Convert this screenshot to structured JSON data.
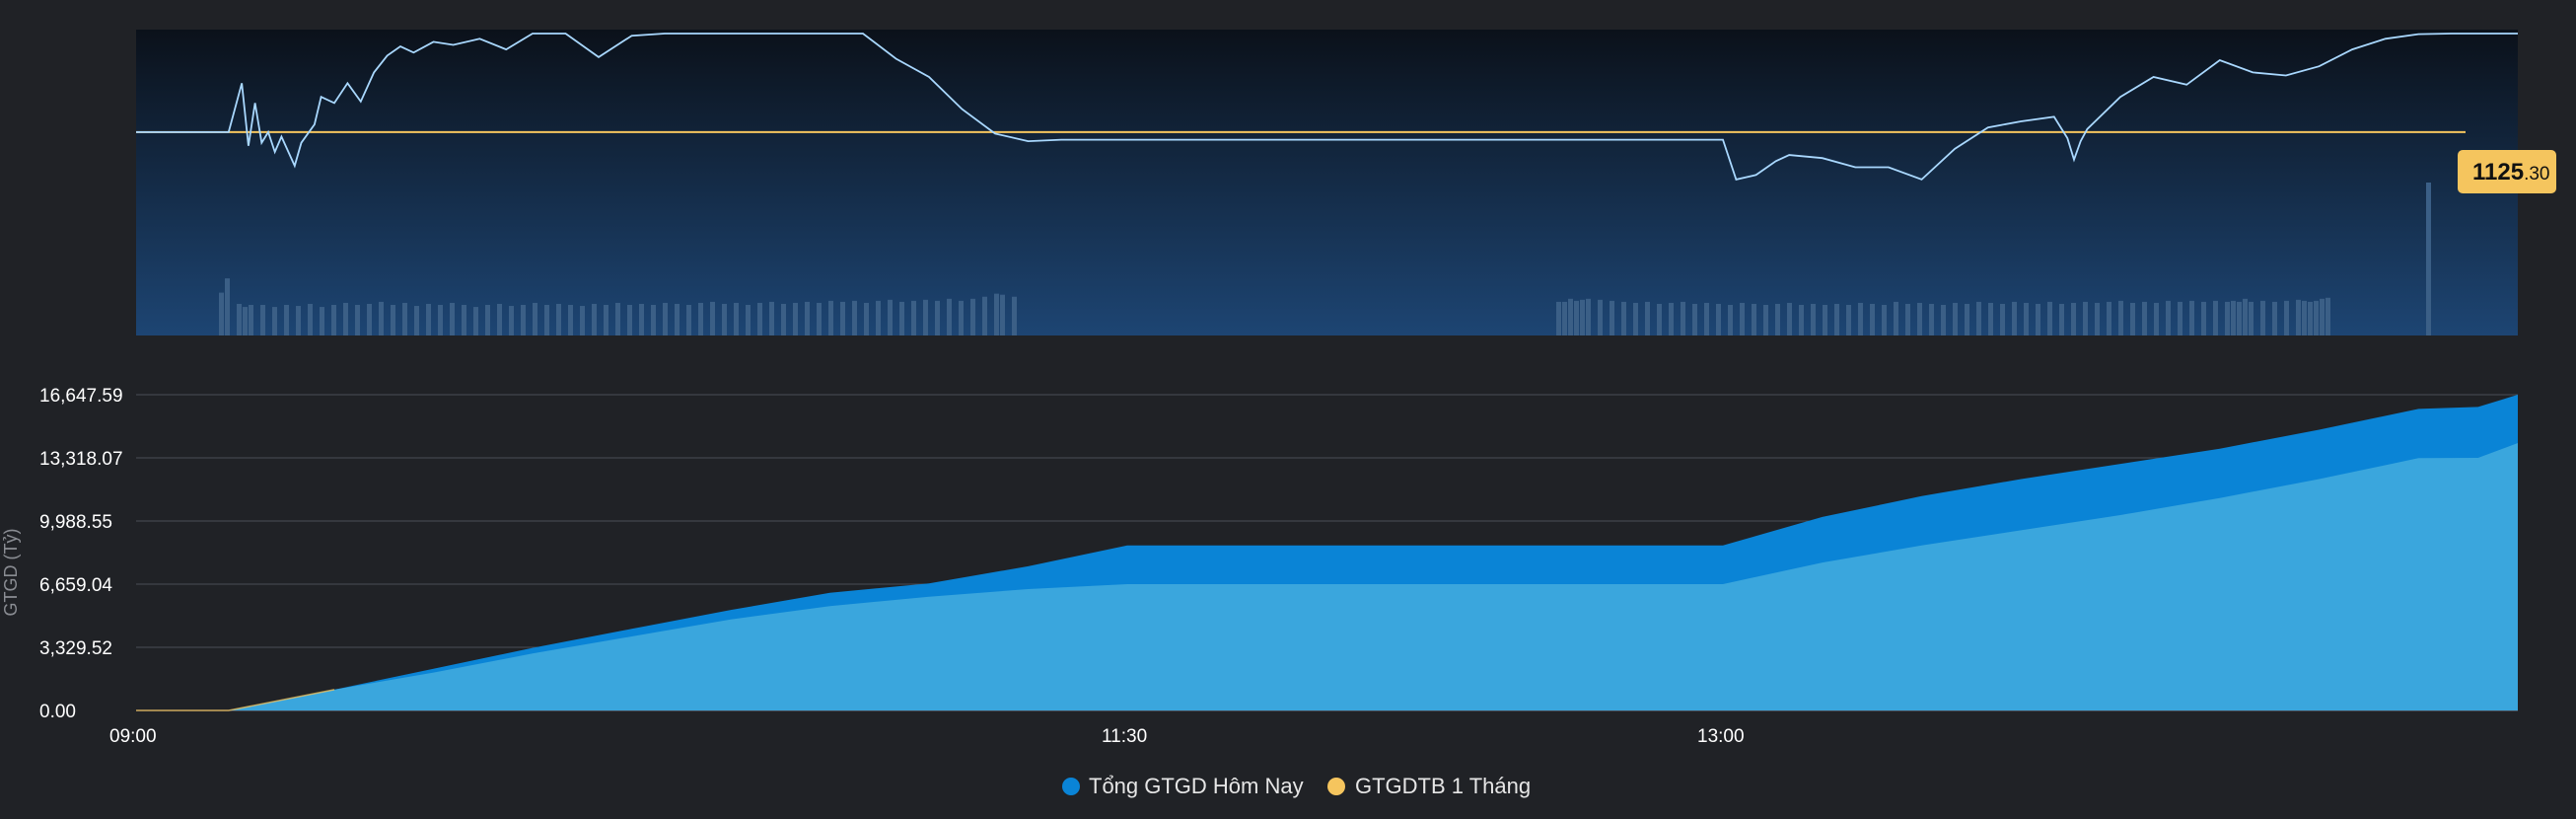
{
  "chart_data": [
    {
      "type": "line",
      "name": "intraday-index",
      "x_unit": "time",
      "x_domain": [
        "09:00",
        "15:00"
      ],
      "reference_value": 1125.3,
      "reference_label_int": "1125",
      "reference_label_dec": ".30",
      "ylim": [
        1112,
        1132
      ],
      "breaks": [
        [
          "11:30",
          "13:00"
        ]
      ],
      "x": [
        "09:00",
        "09:14",
        "09:16",
        "09:17",
        "09:18",
        "09:19",
        "09:20",
        "09:21",
        "09:22",
        "09:24",
        "09:25",
        "09:27",
        "09:28",
        "09:30",
        "09:32",
        "09:34",
        "09:36",
        "09:38",
        "09:40",
        "09:42",
        "09:45",
        "09:48",
        "09:52",
        "09:56",
        "10:00",
        "10:05",
        "10:10",
        "10:15",
        "10:20",
        "10:25",
        "10:30",
        "10:35",
        "10:40",
        "10:45",
        "10:50",
        "10:55",
        "11:00",
        "11:05",
        "11:10",
        "11:15",
        "11:20",
        "11:25",
        "11:30",
        "11:32",
        "12:59",
        "13:00",
        "13:02",
        "13:05",
        "13:08",
        "13:10",
        "13:15",
        "13:20",
        "13:25",
        "13:30",
        "13:35",
        "13:40",
        "13:45",
        "13:50",
        "13:52",
        "13:53",
        "13:54",
        "13:55",
        "14:00",
        "14:05",
        "14:10",
        "14:15",
        "14:20",
        "14:25",
        "14:30",
        "14:35",
        "14:40",
        "14:45",
        "14:50",
        "14:55",
        "15:00"
      ],
      "values": [
        1125.3,
        1125.3,
        1128.5,
        1124.4,
        1127.2,
        1124.6,
        1125.3,
        1124.0,
        1125.0,
        1123.1,
        1124.6,
        1125.8,
        1127.6,
        1127.2,
        1128.5,
        1127.3,
        1129.2,
        1130.3,
        1130.9,
        1130.5,
        1131.2,
        1131.0,
        1131.4,
        1130.7,
        1131.8,
        1132.4,
        1130.2,
        1131.6,
        1132.5,
        1133.2,
        1133.5,
        1133.1,
        1133.6,
        1133.2,
        1132.0,
        1130.1,
        1128.9,
        1126.8,
        1125.2,
        1124.7,
        1124.8,
        1124.8,
        1124.8,
        1124.8,
        1124.8,
        1124.8,
        1122.2,
        1122.5,
        1123.4,
        1123.8,
        1123.6,
        1123.0,
        1123.0,
        1122.2,
        1124.2,
        1125.6,
        1126.0,
        1126.3,
        1124.9,
        1123.5,
        1124.7,
        1125.5,
        1127.6,
        1128.9,
        1128.4,
        1130.0,
        1129.2,
        1129.0,
        1129.6,
        1130.7,
        1131.4,
        1131.7,
        1131.8,
        1131.9,
        1131.9
      ],
      "volume": {
        "ylim": [
          0,
          3000
        ],
        "bars": [
          [
            14,
            420
          ],
          [
            15,
            560
          ],
          [
            17,
            310
          ],
          [
            18,
            280
          ],
          [
            19,
            300
          ],
          [
            21,
            300
          ],
          [
            23,
            280
          ],
          [
            25,
            300
          ],
          [
            27,
            290
          ],
          [
            29,
            310
          ],
          [
            31,
            280
          ],
          [
            33,
            300
          ],
          [
            35,
            320
          ],
          [
            37,
            300
          ],
          [
            39,
            310
          ],
          [
            41,
            330
          ],
          [
            43,
            300
          ],
          [
            45,
            320
          ],
          [
            47,
            290
          ],
          [
            49,
            310
          ],
          [
            51,
            300
          ],
          [
            53,
            320
          ],
          [
            55,
            300
          ],
          [
            57,
            280
          ],
          [
            59,
            300
          ],
          [
            61,
            310
          ],
          [
            63,
            290
          ],
          [
            65,
            300
          ],
          [
            67,
            320
          ],
          [
            69,
            300
          ],
          [
            71,
            310
          ],
          [
            73,
            300
          ],
          [
            75,
            290
          ],
          [
            77,
            310
          ],
          [
            79,
            300
          ],
          [
            81,
            320
          ],
          [
            83,
            300
          ],
          [
            85,
            310
          ],
          [
            87,
            300
          ],
          [
            89,
            320
          ],
          [
            91,
            310
          ],
          [
            93,
            300
          ],
          [
            95,
            320
          ],
          [
            97,
            330
          ],
          [
            99,
            310
          ],
          [
            101,
            320
          ],
          [
            103,
            300
          ],
          [
            105,
            320
          ],
          [
            107,
            330
          ],
          [
            109,
            310
          ],
          [
            111,
            320
          ],
          [
            113,
            330
          ],
          [
            115,
            320
          ],
          [
            117,
            340
          ],
          [
            119,
            330
          ],
          [
            121,
            340
          ],
          [
            123,
            320
          ],
          [
            125,
            340
          ],
          [
            127,
            350
          ],
          [
            129,
            330
          ],
          [
            131,
            340
          ],
          [
            133,
            350
          ],
          [
            135,
            340
          ],
          [
            137,
            360
          ],
          [
            139,
            340
          ],
          [
            141,
            360
          ],
          [
            143,
            380
          ],
          [
            145,
            410
          ],
          [
            146,
            400
          ],
          [
            148,
            380
          ],
          [
            240,
            330
          ],
          [
            241,
            330
          ],
          [
            242,
            360
          ],
          [
            243,
            340
          ],
          [
            244,
            350
          ],
          [
            245,
            360
          ],
          [
            247,
            350
          ],
          [
            249,
            340
          ],
          [
            251,
            330
          ],
          [
            253,
            320
          ],
          [
            255,
            330
          ],
          [
            257,
            310
          ],
          [
            259,
            320
          ],
          [
            261,
            330
          ],
          [
            263,
            310
          ],
          [
            265,
            320
          ],
          [
            267,
            310
          ],
          [
            269,
            300
          ],
          [
            271,
            320
          ],
          [
            273,
            310
          ],
          [
            275,
            300
          ],
          [
            277,
            310
          ],
          [
            279,
            320
          ],
          [
            281,
            300
          ],
          [
            283,
            310
          ],
          [
            285,
            300
          ],
          [
            287,
            310
          ],
          [
            289,
            300
          ],
          [
            291,
            320
          ],
          [
            293,
            310
          ],
          [
            295,
            300
          ],
          [
            297,
            330
          ],
          [
            299,
            310
          ],
          [
            301,
            320
          ],
          [
            303,
            310
          ],
          [
            305,
            300
          ],
          [
            307,
            320
          ],
          [
            309,
            310
          ],
          [
            311,
            330
          ],
          [
            313,
            320
          ],
          [
            315,
            310
          ],
          [
            317,
            330
          ],
          [
            319,
            320
          ],
          [
            321,
            310
          ],
          [
            323,
            330
          ],
          [
            325,
            310
          ],
          [
            327,
            320
          ],
          [
            329,
            330
          ],
          [
            331,
            320
          ],
          [
            333,
            330
          ],
          [
            335,
            340
          ],
          [
            337,
            320
          ],
          [
            339,
            330
          ],
          [
            341,
            320
          ],
          [
            343,
            340
          ],
          [
            345,
            330
          ],
          [
            347,
            340
          ],
          [
            349,
            330
          ],
          [
            351,
            340
          ],
          [
            353,
            330
          ],
          [
            354,
            340
          ],
          [
            355,
            330
          ],
          [
            356,
            360
          ],
          [
            357,
            330
          ],
          [
            359,
            340
          ],
          [
            361,
            330
          ],
          [
            363,
            340
          ],
          [
            365,
            350
          ],
          [
            366,
            340
          ],
          [
            367,
            330
          ],
          [
            368,
            340
          ],
          [
            369,
            360
          ],
          [
            370,
            370
          ],
          [
            387,
            1500
          ]
        ],
        "bar_index_unit": "minutes-from-09:00-compressed"
      }
    },
    {
      "type": "area",
      "ylabel": "GTGD (Tỷ)",
      "ylim": [
        0,
        16647.59
      ],
      "yticks": [
        "0.00",
        "3,329.52",
        "6,659.04",
        "9,988.55",
        "13,318.07",
        "16,647.59"
      ],
      "ytick_values": [
        0,
        3329.52,
        6659.04,
        9988.55,
        13318.07,
        16647.59
      ],
      "xticks": [
        "09:00",
        "11:30",
        "13:00"
      ],
      "x_domain": [
        "09:00",
        "15:00"
      ],
      "x": [
        "09:00",
        "09:14",
        "09:30",
        "09:45",
        "10:00",
        "10:15",
        "10:30",
        "10:45",
        "11:00",
        "11:15",
        "11:30",
        "13:00",
        "13:15",
        "13:30",
        "13:45",
        "14:00",
        "14:15",
        "14:30",
        "14:45",
        "14:54",
        "15:00"
      ],
      "series": [
        {
          "name": "Tổng GTGD Hôm Nay",
          "color": "#0a84d6",
          "values": [
            0,
            0,
            1100,
            2200,
            3300,
            4300,
            5300,
            6200,
            6700,
            7600,
            8700,
            8700,
            10200,
            11300,
            12200,
            13000,
            13800,
            14800,
            15900,
            16000,
            16647.59
          ]
        },
        {
          "name": "GTGDTB 1 Tháng",
          "color": "#f5c55e",
          "values": [
            0,
            0,
            1100,
            2000,
            3000,
            3900,
            4800,
            5500,
            6000,
            6400,
            6659,
            6659,
            7800,
            8700,
            9500,
            10300,
            11200,
            12200,
            13300,
            13318,
            14100
          ]
        }
      ],
      "legend": "bottom-center",
      "grid": true
    }
  ]
}
